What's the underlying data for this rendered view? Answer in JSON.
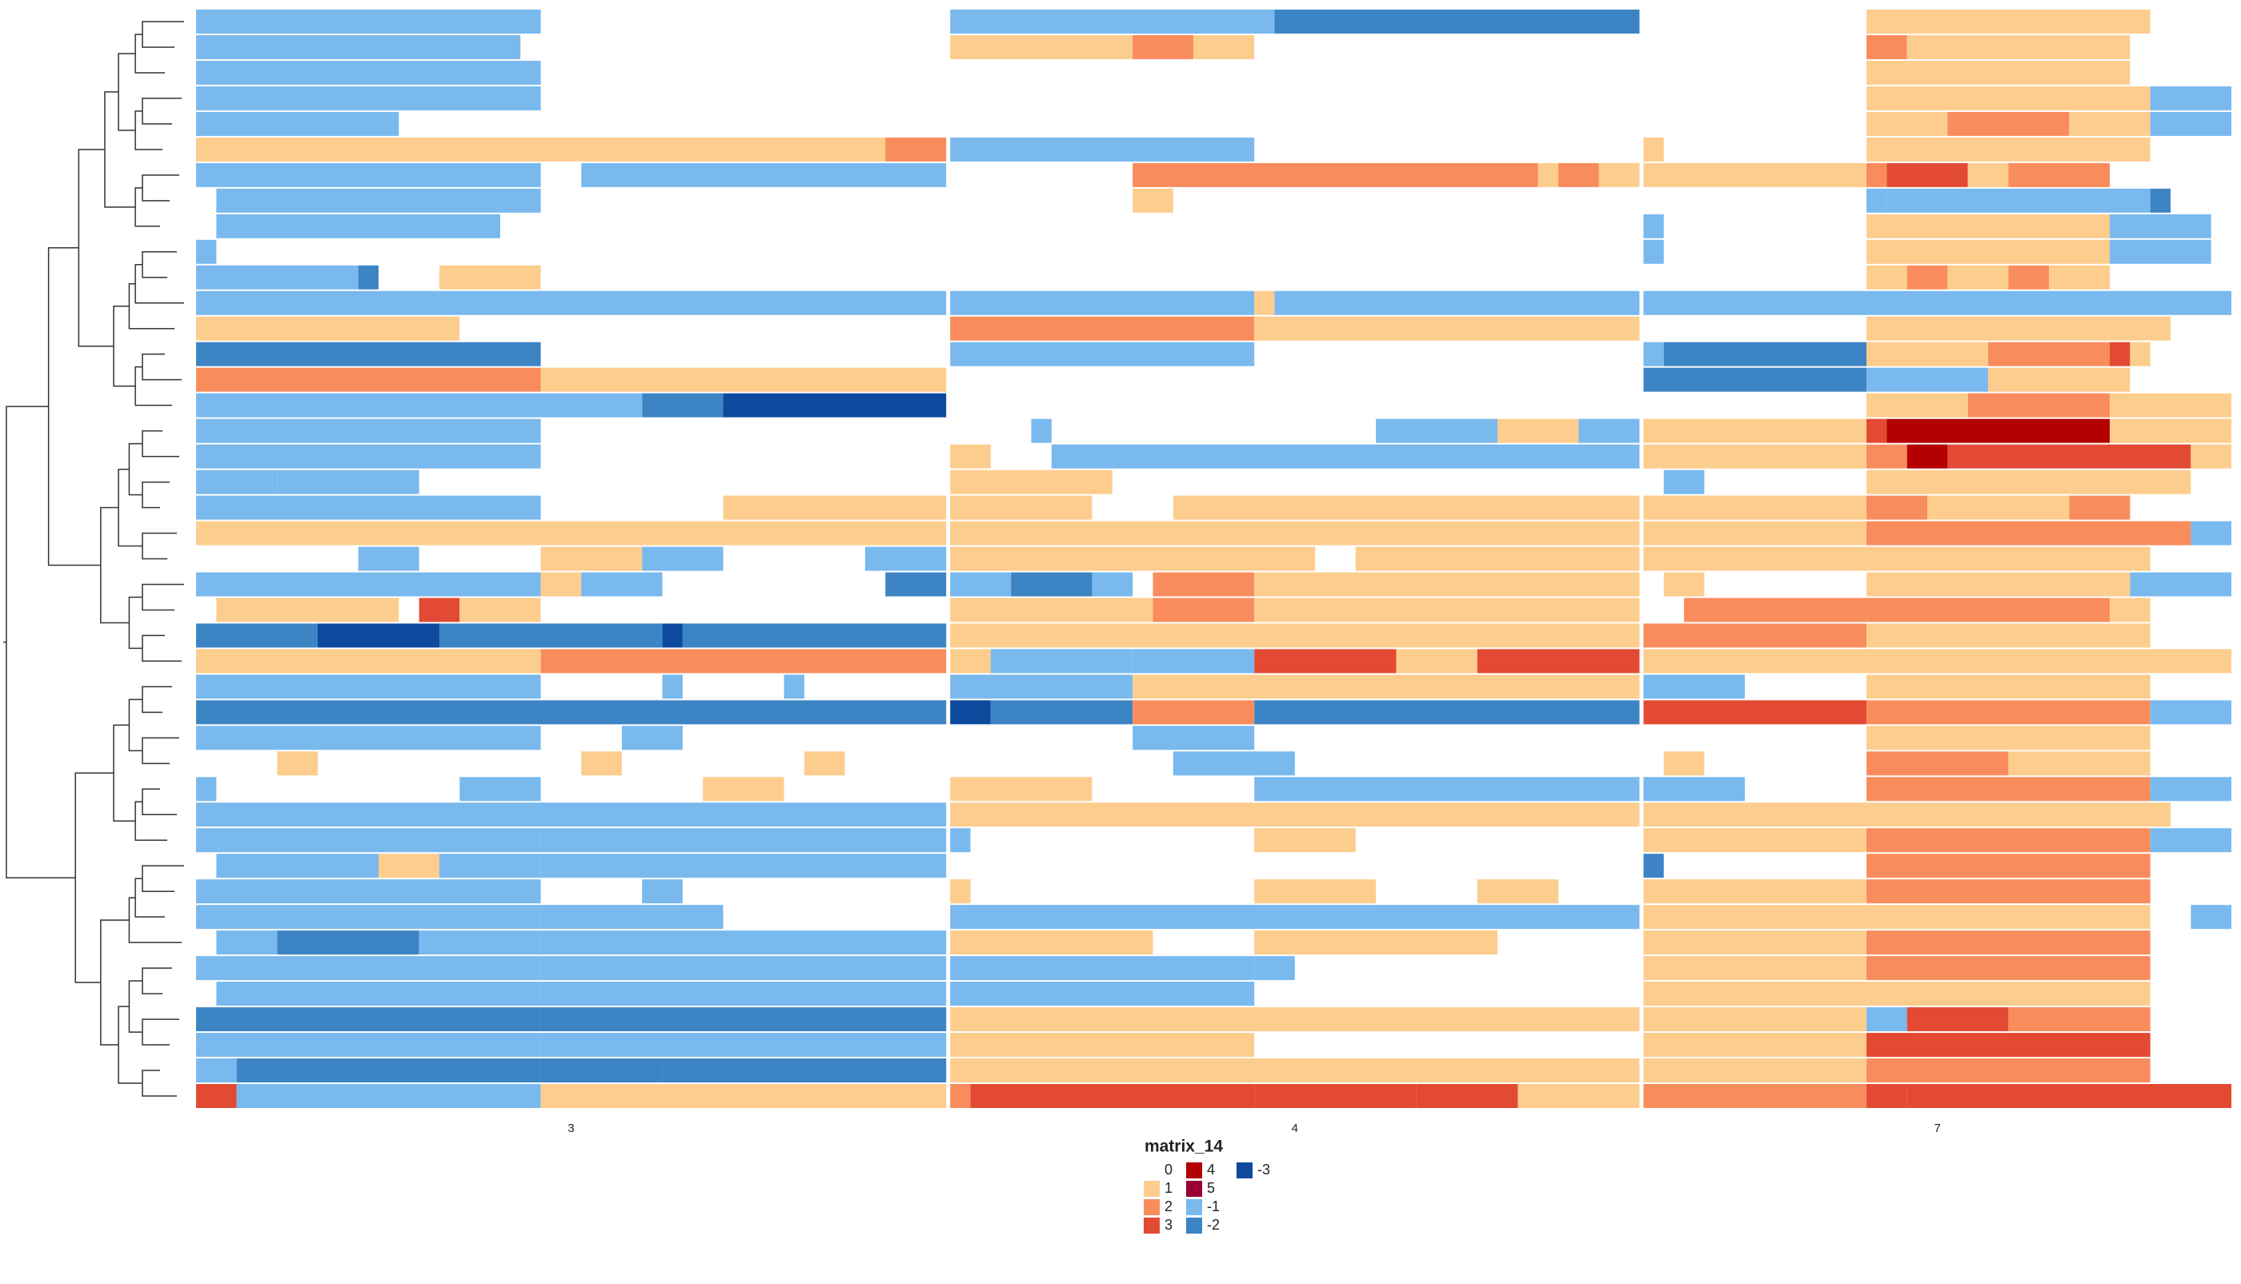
{
  "chart_data": {
    "type": "heatmap",
    "legend_title": "matrix_14",
    "levels": [
      {
        "value": 0,
        "color": "#ffffff"
      },
      {
        "value": 1,
        "color": "#fdcd8e"
      },
      {
        "value": 2,
        "color": "#f98c5c"
      },
      {
        "value": 3,
        "color": "#e34a33"
      },
      {
        "value": 4,
        "color": "#b30000"
      },
      {
        "value": 5,
        "color": "#990033"
      },
      {
        "value": -1,
        "color": "#79b9ee"
      },
      {
        "value": -2,
        "color": "#3c84c4"
      },
      {
        "value": -3,
        "color": "#0d4a9e"
      }
    ],
    "column_groups": [
      {
        "label": "3",
        "bins": [
          0,
          37
        ]
      },
      {
        "label": "4",
        "bins": [
          37,
          71
        ]
      },
      {
        "label": "7",
        "bins": [
          71,
          100
        ]
      }
    ],
    "rows": [
      [
        [
          0,
          17,
          -1
        ],
        [
          37,
          50,
          -1
        ],
        [
          50,
          53,
          -1
        ],
        [
          53,
          71,
          -2
        ],
        [
          82,
          96,
          1
        ]
      ],
      [
        [
          0,
          16,
          -1
        ],
        [
          37,
          46,
          1
        ],
        [
          46,
          49,
          2
        ],
        [
          49,
          52,
          1
        ],
        [
          82,
          84,
          2
        ],
        [
          84,
          95,
          1
        ]
      ],
      [
        [
          0,
          17,
          -1
        ],
        [
          82,
          95,
          1
        ]
      ],
      [
        [
          0,
          17,
          -1
        ],
        [
          82,
          96,
          1
        ],
        [
          96,
          100,
          -1
        ]
      ],
      [
        [
          0,
          10,
          -1
        ],
        [
          82,
          86,
          1
        ],
        [
          86,
          92,
          2
        ],
        [
          92,
          96,
          1
        ],
        [
          96,
          100,
          -1
        ]
      ],
      [
        [
          0,
          34,
          1
        ],
        [
          34,
          37,
          2
        ],
        [
          37,
          52,
          -1
        ],
        [
          71,
          72,
          1
        ],
        [
          82,
          96,
          1
        ]
      ],
      [
        [
          0,
          17,
          -1
        ],
        [
          19,
          37,
          -1
        ],
        [
          46,
          66,
          2
        ],
        [
          66,
          67,
          1
        ],
        [
          67,
          69,
          2
        ],
        [
          69,
          71,
          1
        ],
        [
          71,
          82,
          1
        ],
        [
          82,
          83,
          2
        ],
        [
          83,
          87,
          3
        ],
        [
          87,
          89,
          1
        ],
        [
          89,
          94,
          2
        ]
      ],
      [
        [
          1,
          17,
          -1
        ],
        [
          46,
          48,
          1
        ],
        [
          82,
          83,
          -1
        ],
        [
          83,
          96,
          -1
        ],
        [
          96,
          97,
          -2
        ]
      ],
      [
        [
          1,
          15,
          -1
        ],
        [
          71,
          72,
          -1
        ],
        [
          82,
          94,
          1
        ],
        [
          94,
          99,
          -1
        ]
      ],
      [
        [
          0,
          1,
          -1
        ],
        [
          71,
          72,
          -1
        ],
        [
          82,
          94,
          1
        ],
        [
          94,
          99,
          -1
        ]
      ],
      [
        [
          0,
          8,
          -1
        ],
        [
          8,
          9,
          -2
        ],
        [
          12,
          17,
          1
        ],
        [
          82,
          84,
          1
        ],
        [
          84,
          86,
          2
        ],
        [
          86,
          89,
          1
        ],
        [
          89,
          91,
          2
        ],
        [
          91,
          94,
          1
        ]
      ],
      [
        [
          0,
          37,
          -1
        ],
        [
          37,
          52,
          -1
        ],
        [
          52,
          53,
          1
        ],
        [
          53,
          71,
          -1
        ],
        [
          71,
          100,
          -1
        ]
      ],
      [
        [
          0,
          13,
          1
        ],
        [
          37,
          52,
          2
        ],
        [
          52,
          53,
          1
        ],
        [
          53,
          71,
          1
        ],
        [
          82,
          84,
          1
        ],
        [
          84,
          97,
          1
        ]
      ],
      [
        [
          0,
          17,
          -2
        ],
        [
          37,
          52,
          -1
        ],
        [
          71,
          72,
          -1
        ],
        [
          72,
          82,
          -2
        ],
        [
          82,
          88,
          1
        ],
        [
          88,
          94,
          2
        ],
        [
          94,
          95,
          3
        ],
        [
          95,
          96,
          1
        ]
      ],
      [
        [
          0,
          17,
          2
        ],
        [
          17,
          37,
          1
        ],
        [
          71,
          82,
          -2
        ],
        [
          82,
          88,
          -1
        ],
        [
          88,
          95,
          1
        ]
      ],
      [
        [
          0,
          22,
          -1
        ],
        [
          22,
          26,
          -2
        ],
        [
          26,
          37,
          -3
        ],
        [
          82,
          87,
          1
        ],
        [
          87,
          94,
          2
        ],
        [
          94,
          100,
          1
        ]
      ],
      [
        [
          0,
          17,
          -1
        ],
        [
          41,
          42,
          -1
        ],
        [
          58,
          64,
          -1
        ],
        [
          64,
          68,
          1
        ],
        [
          68,
          71,
          -1
        ],
        [
          71,
          82,
          1
        ],
        [
          82,
          83,
          3
        ],
        [
          83,
          94,
          4
        ],
        [
          94,
          100,
          1
        ]
      ],
      [
        [
          0,
          17,
          -1
        ],
        [
          37,
          39,
          1
        ],
        [
          42,
          71,
          -1
        ],
        [
          71,
          82,
          1
        ],
        [
          82,
          84,
          2
        ],
        [
          84,
          86,
          4
        ],
        [
          86,
          98,
          3
        ],
        [
          98,
          100,
          1
        ]
      ],
      [
        [
          0,
          4,
          -1
        ],
        [
          4,
          11,
          -1
        ],
        [
          37,
          45,
          1
        ],
        [
          72,
          74,
          -1
        ],
        [
          82,
          98,
          1
        ]
      ],
      [
        [
          0,
          17,
          -1
        ],
        [
          26,
          37,
          1
        ],
        [
          37,
          44,
          1
        ],
        [
          48,
          71,
          1
        ],
        [
          71,
          82,
          1
        ],
        [
          82,
          85,
          2
        ],
        [
          85,
          92,
          1
        ],
        [
          92,
          95,
          2
        ]
      ],
      [
        [
          0,
          37,
          1
        ],
        [
          37,
          71,
          1
        ],
        [
          71,
          82,
          1
        ],
        [
          82,
          98,
          2
        ],
        [
          98,
          100,
          -1
        ]
      ],
      [
        [
          8,
          11,
          -1
        ],
        [
          17,
          22,
          1
        ],
        [
          22,
          26,
          -1
        ],
        [
          33,
          37,
          -1
        ],
        [
          37,
          55,
          1
        ],
        [
          57,
          71,
          1
        ],
        [
          71,
          82,
          1
        ],
        [
          82,
          96,
          1
        ]
      ],
      [
        [
          0,
          17,
          -1
        ],
        [
          17,
          19,
          1
        ],
        [
          19,
          23,
          -1
        ],
        [
          34,
          37,
          -2
        ],
        [
          37,
          40,
          -1
        ],
        [
          40,
          44,
          -2
        ],
        [
          44,
          46,
          -1
        ],
        [
          47,
          52,
          2
        ],
        [
          52,
          71,
          1
        ],
        [
          72,
          74,
          1
        ],
        [
          82,
          95,
          1
        ],
        [
          95,
          100,
          -1
        ]
      ],
      [
        [
          1,
          10,
          1
        ],
        [
          11,
          13,
          3
        ],
        [
          13,
          17,
          1
        ],
        [
          37,
          47,
          1
        ],
        [
          47,
          52,
          2
        ],
        [
          52,
          71,
          1
        ],
        [
          73,
          82,
          2
        ],
        [
          82,
          94,
          2
        ],
        [
          94,
          96,
          1
        ]
      ],
      [
        [
          0,
          6,
          -2
        ],
        [
          6,
          12,
          -3
        ],
        [
          12,
          23,
          -2
        ],
        [
          23,
          24,
          -3
        ],
        [
          24,
          37,
          -2
        ],
        [
          37,
          71,
          1
        ],
        [
          71,
          82,
          2
        ],
        [
          82,
          96,
          1
        ]
      ],
      [
        [
          0,
          17,
          1
        ],
        [
          17,
          37,
          2
        ],
        [
          37,
          39,
          1
        ],
        [
          39,
          46,
          -1
        ],
        [
          46,
          52,
          -1
        ],
        [
          52,
          59,
          3
        ],
        [
          59,
          63,
          1
        ],
        [
          63,
          71,
          3
        ],
        [
          71,
          82,
          1
        ],
        [
          82,
          100,
          1
        ]
      ],
      [
        [
          0,
          17,
          -1
        ],
        [
          23,
          24,
          -1
        ],
        [
          29,
          30,
          -1
        ],
        [
          37,
          46,
          -1
        ],
        [
          46,
          52,
          1
        ],
        [
          52,
          71,
          1
        ],
        [
          71,
          76,
          -1
        ],
        [
          82,
          96,
          1
        ]
      ],
      [
        [
          0,
          37,
          -2
        ],
        [
          37,
          39,
          -3
        ],
        [
          39,
          46,
          -2
        ],
        [
          46,
          52,
          2
        ],
        [
          52,
          71,
          -2
        ],
        [
          71,
          82,
          3
        ],
        [
          82,
          96,
          2
        ],
        [
          96,
          100,
          -1
        ]
      ],
      [
        [
          0,
          17,
          -1
        ],
        [
          21,
          24,
          -1
        ],
        [
          46,
          52,
          -1
        ],
        [
          82,
          96,
          1
        ]
      ],
      [
        [
          4,
          6,
          1
        ],
        [
          19,
          21,
          1
        ],
        [
          30,
          32,
          1
        ],
        [
          48,
          54,
          -1
        ],
        [
          72,
          74,
          1
        ],
        [
          82,
          89,
          2
        ],
        [
          89,
          96,
          1
        ]
      ],
      [
        [
          0,
          1,
          -1
        ],
        [
          13,
          17,
          -1
        ],
        [
          25,
          29,
          1
        ],
        [
          37,
          44,
          1
        ],
        [
          52,
          71,
          -1
        ],
        [
          71,
          76,
          -1
        ],
        [
          82,
          96,
          2
        ],
        [
          96,
          100,
          -1
        ]
      ],
      [
        [
          0,
          37,
          -1
        ],
        [
          37,
          52,
          1
        ],
        [
          52,
          71,
          1
        ],
        [
          71,
          82,
          1
        ],
        [
          82,
          97,
          1
        ]
      ],
      [
        [
          0,
          17,
          -1
        ],
        [
          17,
          37,
          -1
        ],
        [
          37,
          38,
          -1
        ],
        [
          52,
          57,
          1
        ],
        [
          71,
          82,
          1
        ],
        [
          82,
          96,
          2
        ],
        [
          96,
          100,
          -1
        ]
      ],
      [
        [
          1,
          9,
          -1
        ],
        [
          9,
          12,
          1
        ],
        [
          12,
          17,
          -1
        ],
        [
          17,
          37,
          -1
        ],
        [
          71,
          72,
          -2
        ],
        [
          82,
          96,
          2
        ]
      ],
      [
        [
          0,
          17,
          -1
        ],
        [
          22,
          24,
          -1
        ],
        [
          37,
          38,
          1
        ],
        [
          52,
          58,
          1
        ],
        [
          63,
          67,
          1
        ],
        [
          71,
          82,
          1
        ],
        [
          82,
          96,
          2
        ]
      ],
      [
        [
          0,
          17,
          -1
        ],
        [
          17,
          26,
          -1
        ],
        [
          37,
          71,
          -1
        ],
        [
          71,
          82,
          1
        ],
        [
          82,
          96,
          1
        ],
        [
          98,
          100,
          -1
        ]
      ],
      [
        [
          1,
          4,
          -1
        ],
        [
          4,
          11,
          -2
        ],
        [
          11,
          17,
          -1
        ],
        [
          17,
          37,
          -1
        ],
        [
          37,
          47,
          1
        ],
        [
          52,
          64,
          1
        ],
        [
          71,
          82,
          1
        ],
        [
          82,
          96,
          2
        ]
      ],
      [
        [
          0,
          17,
          -1
        ],
        [
          17,
          37,
          -1
        ],
        [
          37,
          52,
          -1
        ],
        [
          52,
          54,
          -1
        ],
        [
          71,
          82,
          1
        ],
        [
          82,
          96,
          2
        ]
      ],
      [
        [
          1,
          17,
          -1
        ],
        [
          17,
          37,
          -1
        ],
        [
          37,
          52,
          -1
        ],
        [
          71,
          82,
          1
        ],
        [
          82,
          96,
          1
        ]
      ],
      [
        [
          0,
          17,
          -2
        ],
        [
          17,
          37,
          -2
        ],
        [
          37,
          71,
          1
        ],
        [
          71,
          82,
          1
        ],
        [
          82,
          84,
          -1
        ],
        [
          84,
          89,
          3
        ],
        [
          89,
          96,
          2
        ]
      ],
      [
        [
          0,
          17,
          -1
        ],
        [
          17,
          37,
          -1
        ],
        [
          37,
          52,
          1
        ],
        [
          71,
          82,
          1
        ],
        [
          82,
          96,
          3
        ]
      ],
      [
        [
          0,
          2,
          -1
        ],
        [
          2,
          9,
          -2
        ],
        [
          9,
          17,
          -2
        ],
        [
          17,
          23,
          -2
        ],
        [
          23,
          37,
          -2
        ],
        [
          37,
          71,
          1
        ],
        [
          71,
          82,
          1
        ],
        [
          82,
          96,
          2
        ]
      ],
      [
        [
          0,
          2,
          3
        ],
        [
          2,
          17,
          -1
        ],
        [
          17,
          37,
          1
        ],
        [
          37,
          38,
          2
        ],
        [
          38,
          52,
          3
        ],
        [
          52,
          60,
          3
        ],
        [
          60,
          65,
          3
        ],
        [
          65,
          71,
          1
        ],
        [
          71,
          82,
          2
        ],
        [
          82,
          84,
          3
        ],
        [
          84,
          100,
          3
        ]
      ]
    ]
  }
}
